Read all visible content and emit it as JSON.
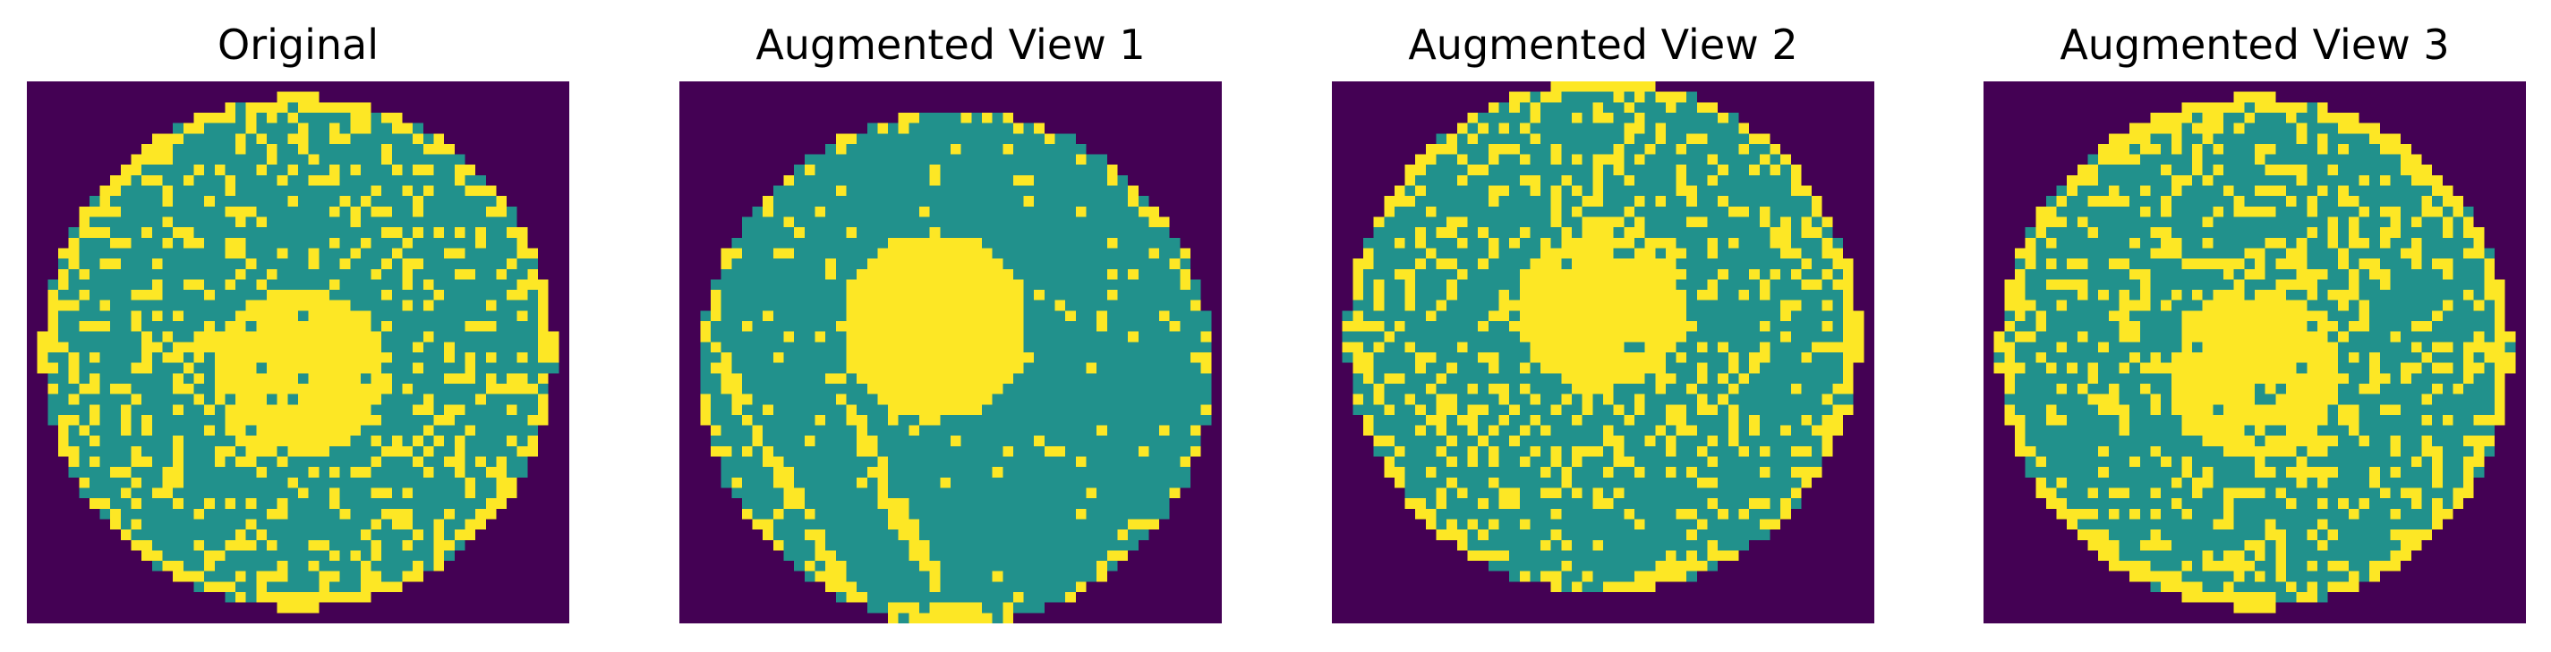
{
  "panels": [
    {
      "title": "Original",
      "view": "original"
    },
    {
      "title": "Augmented View 1",
      "view": "smoothed"
    },
    {
      "title": "Augmented View 2",
      "view": "shifted"
    },
    {
      "title": "Augmented View 3",
      "view": "jittered"
    }
  ],
  "colors": {
    "background": "#440154",
    "normal": "#21918c",
    "defect": "#fde725"
  }
}
